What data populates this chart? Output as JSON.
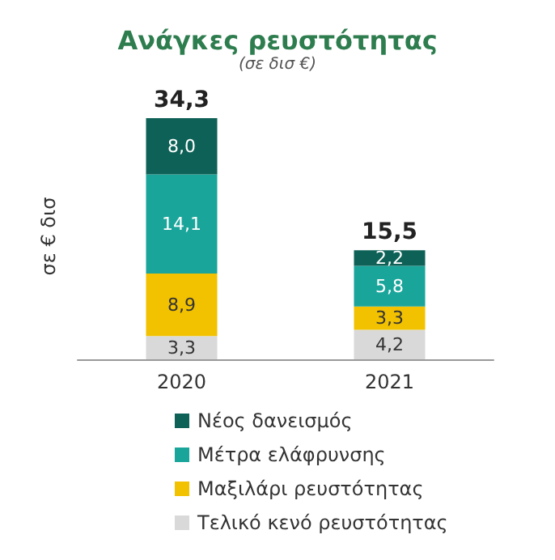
{
  "chart_data": {
    "type": "bar",
    "title": "Ανάγκες ρευστότητας",
    "subtitle": "(σε δισ €)",
    "ylabel": "σε € δισ",
    "categories": [
      "2020",
      "2021"
    ],
    "stacked": true,
    "legend": "bottom",
    "grid": false,
    "series": [
      {
        "name": "Τελικό κενό ρευστότητας",
        "color": "#d9d9d9",
        "values": [
          3.3,
          4.2
        ],
        "value_labels": [
          "3,3",
          "4,2"
        ]
      },
      {
        "name": "Μαξιλάρι ρευστότητας",
        "color": "#f2c100",
        "values": [
          8.9,
          3.3
        ],
        "value_labels": [
          "8,9",
          "3,3"
        ]
      },
      {
        "name": "Μέτρα ελάφρυνσης",
        "color": "#1aa59b",
        "values": [
          14.1,
          5.8
        ],
        "value_labels": [
          "14,1",
          "5,8"
        ]
      },
      {
        "name": "Νέος δανεισμός",
        "color": "#0e6157",
        "values": [
          8.0,
          2.2
        ],
        "value_labels": [
          "8,0",
          "2,2"
        ]
      }
    ],
    "totals": [
      "34,3",
      "15,5"
    ]
  }
}
